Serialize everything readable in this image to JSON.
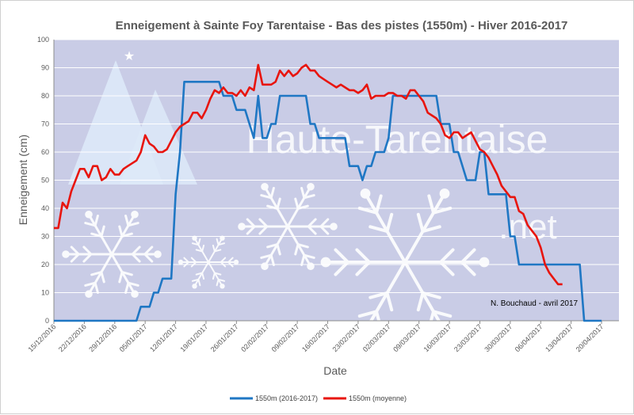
{
  "chart_data": {
    "type": "line",
    "title": "Enneigement à Sainte Foy Tarentaise - Bas des pistes (1550m) - Hiver 2016-2017",
    "xlabel": "Date",
    "ylabel": "Enneigement (cm)",
    "ylim": [
      0,
      100
    ],
    "yticks": [
      0,
      10,
      20,
      30,
      40,
      50,
      60,
      70,
      80,
      90,
      100
    ],
    "grid": true,
    "legend_position": "bottom",
    "xlim": [
      "15/12/2016",
      "24/04/2017"
    ],
    "xticks": [
      "15/12/2016",
      "22/12/2016",
      "29/12/2016",
      "05/01/2017",
      "12/01/2017",
      "19/01/2017",
      "26/01/2017",
      "02/02/2017",
      "09/02/2017",
      "16/02/2017",
      "23/02/2017",
      "02/03/2017",
      "09/03/2017",
      "16/03/2017",
      "23/03/2017",
      "30/03/2017",
      "06/04/2017",
      "13/04/2017",
      "20/04/2017"
    ],
    "series": [
      {
        "name": "1550m (2016-2017)",
        "color": "#1f77c4",
        "points": [
          [
            "15/12/2016",
            0
          ],
          [
            "03/01/2017",
            0
          ],
          [
            "04/01/2017",
            5
          ],
          [
            "06/01/2017",
            5
          ],
          [
            "07/01/2017",
            10
          ],
          [
            "08/01/2017",
            10
          ],
          [
            "09/01/2017",
            15
          ],
          [
            "11/01/2017",
            15
          ],
          [
            "12/01/2017",
            45
          ],
          [
            "13/01/2017",
            60
          ],
          [
            "14/01/2017",
            85
          ],
          [
            "22/01/2017",
            85
          ],
          [
            "23/01/2017",
            80
          ],
          [
            "25/01/2017",
            80
          ],
          [
            "26/01/2017",
            75
          ],
          [
            "28/01/2017",
            75
          ],
          [
            "29/01/2017",
            70
          ],
          [
            "30/01/2017",
            65
          ],
          [
            "31/01/2017",
            80
          ],
          [
            "01/02/2017",
            65
          ],
          [
            "02/02/2017",
            65
          ],
          [
            "03/02/2017",
            70
          ],
          [
            "04/02/2017",
            70
          ],
          [
            "05/02/2017",
            80
          ],
          [
            "11/02/2017",
            80
          ],
          [
            "12/02/2017",
            70
          ],
          [
            "13/02/2017",
            70
          ],
          [
            "14/02/2017",
            65
          ],
          [
            "20/02/2017",
            65
          ],
          [
            "21/02/2017",
            55
          ],
          [
            "23/02/2017",
            55
          ],
          [
            "24/02/2017",
            50
          ],
          [
            "25/02/2017",
            55
          ],
          [
            "26/02/2017",
            55
          ],
          [
            "27/02/2017",
            60
          ],
          [
            "01/03/2017",
            60
          ],
          [
            "02/03/2017",
            65
          ],
          [
            "03/03/2017",
            80
          ],
          [
            "13/03/2017",
            80
          ],
          [
            "14/03/2017",
            70
          ],
          [
            "16/03/2017",
            70
          ],
          [
            "17/03/2017",
            60
          ],
          [
            "18/03/2017",
            60
          ],
          [
            "20/03/2017",
            50
          ],
          [
            "22/03/2017",
            50
          ],
          [
            "23/03/2017",
            60
          ],
          [
            "24/03/2017",
            60
          ],
          [
            "25/03/2017",
            45
          ],
          [
            "29/03/2017",
            45
          ],
          [
            "30/03/2017",
            30
          ],
          [
            "31/03/2017",
            30
          ],
          [
            "01/04/2017",
            20
          ],
          [
            "15/04/2017",
            20
          ],
          [
            "16/04/2017",
            0
          ],
          [
            "20/04/2017",
            0
          ]
        ]
      },
      {
        "name": "1550m (moyenne)",
        "color": "#e8150e",
        "points": [
          [
            "15/12/2016",
            33
          ],
          [
            "16/12/2016",
            33
          ],
          [
            "17/12/2016",
            42
          ],
          [
            "18/12/2016",
            40
          ],
          [
            "19/12/2016",
            46
          ],
          [
            "20/12/2016",
            50
          ],
          [
            "21/12/2016",
            54
          ],
          [
            "22/12/2016",
            54
          ],
          [
            "23/12/2016",
            51
          ],
          [
            "24/12/2016",
            55
          ],
          [
            "25/12/2016",
            55
          ],
          [
            "26/12/2016",
            50
          ],
          [
            "27/12/2016",
            51
          ],
          [
            "28/12/2016",
            54
          ],
          [
            "29/12/2016",
            52
          ],
          [
            "30/12/2016",
            52
          ],
          [
            "31/12/2016",
            54
          ],
          [
            "01/01/2017",
            55
          ],
          [
            "02/01/2017",
            56
          ],
          [
            "03/01/2017",
            57
          ],
          [
            "04/01/2017",
            60
          ],
          [
            "05/01/2017",
            66
          ],
          [
            "06/01/2017",
            63
          ],
          [
            "07/01/2017",
            62
          ],
          [
            "08/01/2017",
            60
          ],
          [
            "09/01/2017",
            60
          ],
          [
            "10/01/2017",
            61
          ],
          [
            "11/01/2017",
            64
          ],
          [
            "12/01/2017",
            67
          ],
          [
            "13/01/2017",
            69
          ],
          [
            "14/01/2017",
            70
          ],
          [
            "15/01/2017",
            71
          ],
          [
            "16/01/2017",
            74
          ],
          [
            "17/01/2017",
            74
          ],
          [
            "18/01/2017",
            72
          ],
          [
            "19/01/2017",
            75
          ],
          [
            "20/01/2017",
            79
          ],
          [
            "21/01/2017",
            82
          ],
          [
            "22/01/2017",
            81
          ],
          [
            "23/01/2017",
            83
          ],
          [
            "24/01/2017",
            81
          ],
          [
            "25/01/2017",
            81
          ],
          [
            "26/01/2017",
            80
          ],
          [
            "27/01/2017",
            82
          ],
          [
            "28/01/2017",
            80
          ],
          [
            "29/01/2017",
            83
          ],
          [
            "30/01/2017",
            82
          ],
          [
            "31/01/2017",
            91
          ],
          [
            "01/02/2017",
            84
          ],
          [
            "02/02/2017",
            84
          ],
          [
            "03/02/2017",
            84
          ],
          [
            "04/02/2017",
            85
          ],
          [
            "05/02/2017",
            89
          ],
          [
            "06/02/2017",
            87
          ],
          [
            "07/02/2017",
            89
          ],
          [
            "08/02/2017",
            87
          ],
          [
            "09/02/2017",
            88
          ],
          [
            "10/02/2017",
            90
          ],
          [
            "11/02/2017",
            91
          ],
          [
            "12/02/2017",
            89
          ],
          [
            "13/02/2017",
            89
          ],
          [
            "14/02/2017",
            87
          ],
          [
            "15/02/2017",
            86
          ],
          [
            "16/02/2017",
            85
          ],
          [
            "17/02/2017",
            84
          ],
          [
            "18/02/2017",
            83
          ],
          [
            "19/02/2017",
            84
          ],
          [
            "20/02/2017",
            83
          ],
          [
            "21/02/2017",
            82
          ],
          [
            "22/02/2017",
            82
          ],
          [
            "23/02/2017",
            81
          ],
          [
            "24/02/2017",
            82
          ],
          [
            "25/02/2017",
            84
          ],
          [
            "26/02/2017",
            79
          ],
          [
            "27/02/2017",
            80
          ],
          [
            "28/02/2017",
            80
          ],
          [
            "01/03/2017",
            80
          ],
          [
            "02/03/2017",
            81
          ],
          [
            "03/03/2017",
            81
          ],
          [
            "04/03/2017",
            80
          ],
          [
            "05/03/2017",
            80
          ],
          [
            "06/03/2017",
            79
          ],
          [
            "07/03/2017",
            82
          ],
          [
            "08/03/2017",
            82
          ],
          [
            "09/03/2017",
            80
          ],
          [
            "10/03/2017",
            78
          ],
          [
            "11/03/2017",
            74
          ],
          [
            "12/03/2017",
            73
          ],
          [
            "13/03/2017",
            72
          ],
          [
            "14/03/2017",
            70
          ],
          [
            "15/03/2017",
            66
          ],
          [
            "16/03/2017",
            65
          ],
          [
            "17/03/2017",
            67
          ],
          [
            "18/03/2017",
            67
          ],
          [
            "19/03/2017",
            65
          ],
          [
            "20/03/2017",
            66
          ],
          [
            "21/03/2017",
            67
          ],
          [
            "22/03/2017",
            64
          ],
          [
            "23/03/2017",
            61
          ],
          [
            "24/03/2017",
            60
          ],
          [
            "25/03/2017",
            58
          ],
          [
            "26/03/2017",
            55
          ],
          [
            "27/03/2017",
            52
          ],
          [
            "28/03/2017",
            48
          ],
          [
            "29/03/2017",
            46
          ],
          [
            "30/03/2017",
            44
          ],
          [
            "31/03/2017",
            44
          ],
          [
            "01/04/2017",
            39
          ],
          [
            "02/04/2017",
            38
          ],
          [
            "03/04/2017",
            34
          ],
          [
            "04/04/2017",
            32
          ],
          [
            "05/04/2017",
            30
          ],
          [
            "06/04/2017",
            26
          ],
          [
            "07/04/2017",
            20
          ],
          [
            "08/04/2017",
            17
          ],
          [
            "09/04/2017",
            15
          ],
          [
            "10/04/2017",
            13
          ],
          [
            "11/04/2017",
            13
          ]
        ]
      }
    ],
    "annotations": [
      "N. Bouchaud - avril 2017"
    ],
    "watermark": [
      "Haute-Tarentaise",
      ".net"
    ]
  },
  "colors": {
    "plot_background": "#c9cce6",
    "gridline": "#ffffff",
    "axis": "#8c8c8c"
  }
}
